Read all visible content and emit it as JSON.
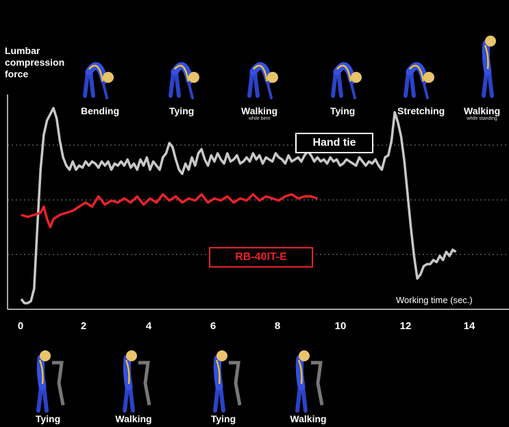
{
  "chart_data": {
    "type": "line",
    "ylabel": "Lumbar\ncompression\nforce",
    "xlabel": "Working time (sec.)",
    "xlim": [
      0,
      15
    ],
    "xticks": [
      0,
      2,
      4,
      6,
      8,
      10,
      12,
      14
    ],
    "ylim": [
      0,
      100
    ],
    "grid": "dotted horizontal lines",
    "series": [
      {
        "name": "Hand tie",
        "color": "#c8c8c8",
        "x": [
          0.0,
          0.1,
          0.2,
          0.3,
          0.4,
          0.5,
          0.6,
          0.7,
          0.8,
          0.9,
          1.0,
          1.1,
          1.2,
          1.3,
          1.4,
          1.5,
          1.6,
          1.7,
          1.8,
          1.9,
          2.0,
          2.1,
          2.2,
          2.3,
          2.4,
          2.5,
          2.6,
          2.7,
          2.8,
          2.9,
          3.0,
          3.1,
          3.2,
          3.3,
          3.4,
          3.5,
          3.6,
          3.7,
          3.8,
          3.9,
          4.0,
          4.1,
          4.2,
          4.3,
          4.4,
          4.5,
          4.6,
          4.7,
          4.8,
          4.9,
          5.0,
          5.1,
          5.2,
          5.3,
          5.4,
          5.5,
          5.6,
          5.7,
          5.8,
          5.9,
          6.0,
          6.1,
          6.2,
          6.3,
          6.4,
          6.5,
          6.6,
          6.7,
          6.8,
          6.9,
          7.0,
          7.1,
          7.2,
          7.3,
          7.4,
          7.5,
          7.6,
          7.7,
          7.8,
          7.9,
          8.0,
          8.1,
          8.2,
          8.3,
          8.4,
          8.5,
          8.6,
          8.7,
          8.8,
          8.9,
          9.0,
          9.1,
          9.2,
          9.3,
          9.4,
          9.5,
          9.6,
          9.7,
          9.8,
          9.9,
          10.0,
          10.1,
          10.2,
          10.3,
          10.4,
          10.5,
          10.6,
          10.7,
          10.8,
          10.9,
          11.0,
          11.1,
          11.2,
          11.3,
          11.4,
          11.5,
          11.6,
          11.7,
          11.8,
          11.9,
          12.0,
          12.1,
          12.2,
          12.3,
          12.4,
          12.5,
          12.6,
          12.7,
          12.8,
          12.9,
          13.0,
          13.1,
          13.2,
          13.3,
          13.4,
          13.5
        ],
        "values": [
          5,
          3,
          3,
          4,
          10,
          40,
          68,
          85,
          92,
          95,
          98,
          93,
          82,
          74,
          70,
          68,
          72,
          68,
          70,
          69,
          72,
          70,
          72,
          71,
          69,
          72,
          70,
          72,
          68,
          71,
          70,
          72,
          70,
          73,
          69,
          71,
          68,
          73,
          70,
          74,
          68,
          72,
          70,
          68,
          74,
          76,
          81,
          79,
          73,
          68,
          66,
          71,
          68,
          74,
          70,
          76,
          78,
          73,
          70,
          75,
          72,
          76,
          73,
          71,
          76,
          72,
          73,
          75,
          71,
          72,
          74,
          72,
          76,
          73,
          75,
          71,
          74,
          73,
          72,
          76,
          74,
          73,
          71,
          75,
          72,
          73,
          74,
          72,
          75,
          77,
          75,
          72,
          74,
          72,
          73,
          71,
          74,
          72,
          73,
          70,
          71,
          73,
          72,
          71,
          70,
          74,
          72,
          70,
          72,
          71,
          73,
          70,
          68,
          74,
          75,
          82,
          96,
          91,
          84,
          72,
          56,
          40,
          26,
          15,
          17,
          21,
          22,
          22,
          24,
          23,
          26,
          24,
          28,
          26,
          29,
          28
        ]
      },
      {
        "name": "RB-40IT-E",
        "color": "#e8222a",
        "x": [
          0.0,
          0.2,
          0.4,
          0.6,
          0.7,
          0.8,
          0.9,
          1.0,
          1.2,
          1.4,
          1.6,
          1.8,
          2.0,
          2.2,
          2.4,
          2.6,
          2.8,
          3.0,
          3.2,
          3.4,
          3.6,
          3.8,
          4.0,
          4.2,
          4.4,
          4.6,
          4.8,
          5.0,
          5.2,
          5.4,
          5.6,
          5.8,
          6.0,
          6.2,
          6.4,
          6.6,
          6.8,
          7.0,
          7.2,
          7.4,
          7.6,
          7.8,
          8.0,
          8.2,
          8.4,
          8.6,
          8.8,
          9.0,
          9.2
        ],
        "values": [
          46,
          45,
          46,
          47,
          50,
          44,
          40,
          44,
          46,
          47,
          48,
          50,
          52,
          50,
          55,
          51,
          53,
          52,
          54,
          52,
          55,
          51,
          54,
          52,
          56,
          53,
          55,
          52,
          54,
          53,
          56,
          52,
          54,
          53,
          55,
          52,
          54,
          53,
          56,
          53,
          55,
          54,
          53,
          55,
          56,
          54,
          55,
          55,
          54
        ]
      }
    ],
    "legend_boxes": [
      "Hand tie",
      "RB-40IT-E"
    ]
  },
  "labels": {
    "ylabel": "Lumbar\ncompression\nforce",
    "working_time": "Working time (sec.)",
    "hand_tie": "Hand tie",
    "rb": "RB-40IT-E"
  },
  "top_activities": [
    {
      "label": "Bending",
      "sub": ""
    },
    {
      "label": "Tying",
      "sub": ""
    },
    {
      "label": "Walking",
      "sub": "while bent"
    },
    {
      "label": "Tying",
      "sub": ""
    },
    {
      "label": "Stretching",
      "sub": ""
    },
    {
      "label": "Walking",
      "sub": "while standing"
    }
  ],
  "bottom_activities": [
    "Tying",
    "Walking",
    "Tying",
    "Walking"
  ],
  "x_ticks": [
    "0",
    "2",
    "4",
    "6",
    "8",
    "10",
    "12",
    "14"
  ]
}
